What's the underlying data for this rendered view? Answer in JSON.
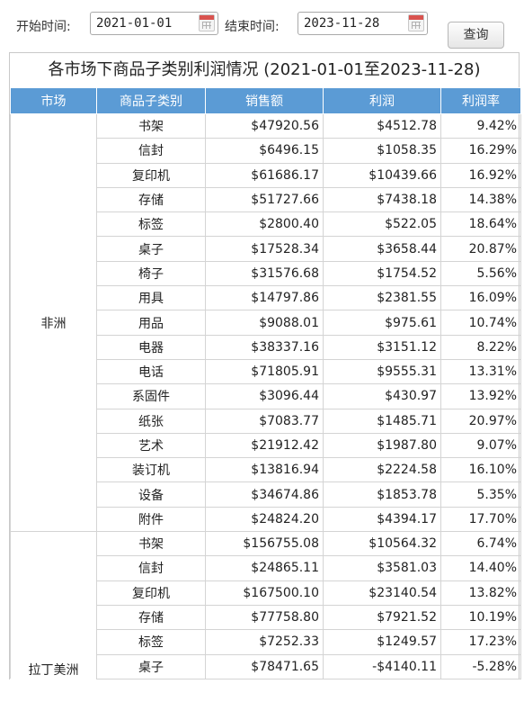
{
  "filters": {
    "start_label": "开始时间:",
    "start_value": "2021-01-01",
    "end_label": "结束时间:",
    "end_value": "2023-11-28",
    "query_label": "查询"
  },
  "report": {
    "title": "各市场下商品子类别利润情况 (2021-01-01至2023-11-28)",
    "headers": [
      "市场",
      "商品子类别",
      "销售额",
      "利润",
      "利润率"
    ],
    "markets": [
      {
        "name": "非洲",
        "rows": [
          [
            "书架",
            "$47920.56",
            "$4512.78",
            "9.42%"
          ],
          [
            "信封",
            "$6496.15",
            "$1058.35",
            "16.29%"
          ],
          [
            "复印机",
            "$61686.17",
            "$10439.66",
            "16.92%"
          ],
          [
            "存储",
            "$51727.66",
            "$7438.18",
            "14.38%"
          ],
          [
            "标签",
            "$2800.40",
            "$522.05",
            "18.64%"
          ],
          [
            "桌子",
            "$17528.34",
            "$3658.44",
            "20.87%"
          ],
          [
            "椅子",
            "$31576.68",
            "$1754.52",
            "5.56%"
          ],
          [
            "用具",
            "$14797.86",
            "$2381.55",
            "16.09%"
          ],
          [
            "用品",
            "$9088.01",
            "$975.61",
            "10.74%"
          ],
          [
            "电器",
            "$38337.16",
            "$3151.12",
            "8.22%"
          ],
          [
            "电话",
            "$71805.91",
            "$9555.31",
            "13.31%"
          ],
          [
            "系固件",
            "$3096.44",
            "$430.97",
            "13.92%"
          ],
          [
            "纸张",
            "$7083.77",
            "$1485.71",
            "20.97%"
          ],
          [
            "艺术",
            "$21912.42",
            "$1987.80",
            "9.07%"
          ],
          [
            "装订机",
            "$13816.94",
            "$2224.58",
            "16.10%"
          ],
          [
            "设备",
            "$34674.86",
            "$1853.78",
            "5.35%"
          ],
          [
            "附件",
            "$24824.20",
            "$4394.17",
            "17.70%"
          ]
        ]
      },
      {
        "name": "拉丁美洲",
        "rows": [
          [
            "书架",
            "$156755.08",
            "$10564.32",
            "6.74%"
          ],
          [
            "信封",
            "$24865.11",
            "$3581.03",
            "14.40%"
          ],
          [
            "复印机",
            "$167500.10",
            "$23140.54",
            "13.82%"
          ],
          [
            "存储",
            "$77758.80",
            "$7921.52",
            "10.19%"
          ],
          [
            "标签",
            "$7252.33",
            "$1249.57",
            "17.23%"
          ],
          [
            "桌子",
            "$78471.65",
            "-$4140.11",
            "-5.28%"
          ]
        ]
      }
    ]
  },
  "icons": {
    "calendar": "calendar-icon"
  },
  "colors": {
    "header_bg": "#5b9bd5",
    "header_text": "#ffffff"
  }
}
